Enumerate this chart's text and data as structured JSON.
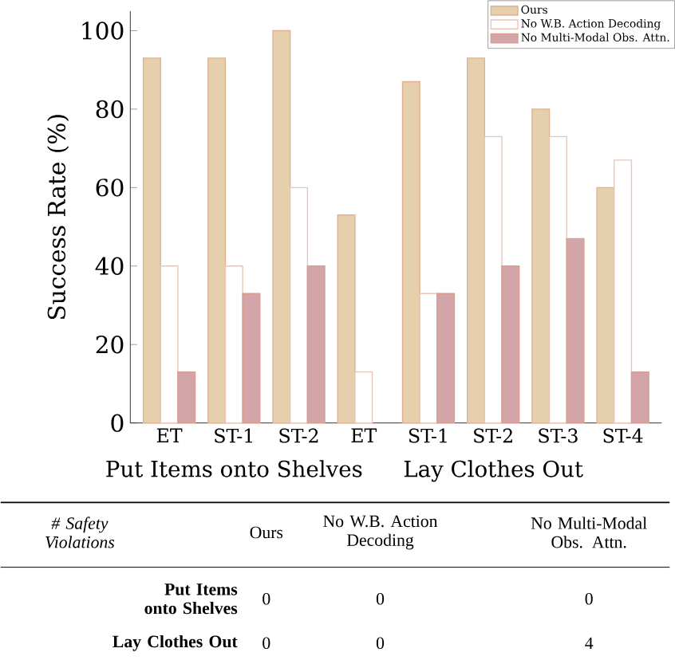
{
  "chart_data": [
    {
      "type": "bar",
      "ylabel": "Success Rate (%)",
      "categories": [
        "ET",
        "ST-1",
        "ST-2",
        "ET",
        "ST-1",
        "ST-2",
        "ST-3",
        "ST-4"
      ],
      "series": [
        {
          "name": "Ours",
          "color": "#e6cfad",
          "values": [
            93,
            93,
            100,
            53,
            87,
            93,
            80,
            60
          ]
        },
        {
          "name": "No W.B. Action Decoding",
          "color": "#ffffff",
          "values": [
            40,
            40,
            60,
            13,
            33,
            73,
            73,
            67
          ]
        },
        {
          "name": "No Multi-Modal Obs. Attn.",
          "color": "#d4a5a8",
          "values": [
            13,
            33,
            40,
            null,
            33,
            40,
            47,
            13
          ]
        }
      ],
      "ylim": [
        0,
        105
      ],
      "yticks": [
        0,
        20,
        40,
        60,
        80,
        100
      ],
      "annotations": [
        "Put Items onto Shelves",
        "Lay Clothes Out"
      ],
      "legend": "top right"
    },
    {
      "type": "heatmap",
      "title": "# Safety Violations",
      "categories": [
        "Ours",
        "No W.B. Action Decoding",
        "No Multi-Modal Obs. Attn."
      ],
      "y_categories": [
        "Put Items onto Shelves",
        "Lay Clothes Out"
      ],
      "cells": [
        [
          0,
          0,
          0
        ],
        [
          0,
          0,
          4
        ]
      ],
      "data_labels": true
    }
  ]
}
